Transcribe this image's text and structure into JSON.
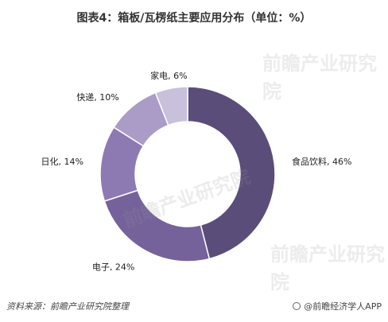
{
  "title": "图表4：箱板/瓦楞纸主要应用分布（单位：%）",
  "footer": {
    "source": "资料来源：前瞻产业研究院整理",
    "brand_icon": "wechat-circle-icon",
    "brand": "@前瞻经济学人APP"
  },
  "watermark": {
    "text": "前瞻产业研究院"
  },
  "chart_data": {
    "type": "pie",
    "donut": true,
    "categories": [
      "食品饮料",
      "电子",
      "日化",
      "快递",
      "家电"
    ],
    "values": [
      46,
      24,
      14,
      10,
      6
    ],
    "labels": [
      "食品饮料, 46%",
      "电子, 24%",
      "日化, 14%",
      "快递, 10%",
      "家电, 6%"
    ],
    "colors": [
      "#5b4d7a",
      "#75629b",
      "#8d7ab3",
      "#aa9cc6",
      "#c9c0dc"
    ]
  }
}
